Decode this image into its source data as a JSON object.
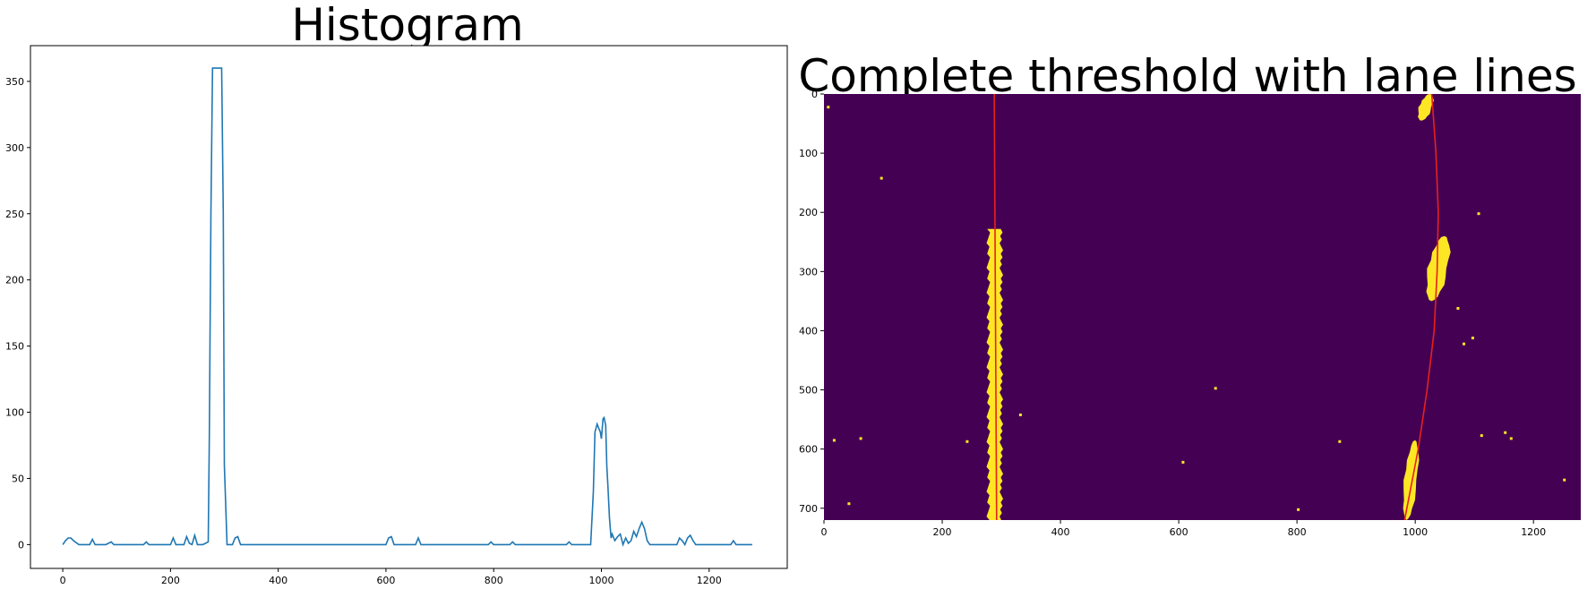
{
  "chart_data": [
    {
      "type": "line",
      "title": "Histogram",
      "xlabel": "",
      "ylabel": "",
      "xlim": [
        -60,
        1345
      ],
      "ylim": [
        -18,
        377
      ],
      "xticks": [
        0,
        200,
        400,
        600,
        800,
        1000,
        1200
      ],
      "yticks": [
        0,
        50,
        100,
        150,
        200,
        250,
        300,
        350
      ],
      "grid": false,
      "color": "#1f77b4",
      "series": [
        {
          "x": [
            0,
            5,
            10,
            15,
            20,
            30,
            50,
            55,
            60,
            80,
            90,
            95,
            100,
            130,
            150,
            155,
            160,
            200,
            205,
            210,
            225,
            230,
            235,
            240,
            245,
            250,
            260,
            270,
            272,
            275,
            278,
            282,
            288,
            295,
            298,
            300,
            305,
            315,
            320,
            325,
            330,
            340,
            600,
            605,
            610,
            615,
            620,
            655,
            660,
            665,
            790,
            795,
            800,
            830,
            835,
            840,
            935,
            940,
            945,
            980,
            985,
            988,
            992,
            995,
            998,
            1000,
            1003,
            1005,
            1008,
            1010,
            1012,
            1015,
            1018,
            1020,
            1025,
            1030,
            1035,
            1040,
            1045,
            1050,
            1055,
            1060,
            1065,
            1070,
            1075,
            1080,
            1085,
            1090,
            1140,
            1145,
            1150,
            1155,
            1160,
            1165,
            1170,
            1175,
            1240,
            1245,
            1250,
            1280
          ],
          "y": [
            0,
            3,
            5,
            5,
            3,
            0,
            0,
            4,
            0,
            0,
            2,
            0,
            0,
            0,
            0,
            2,
            0,
            0,
            5,
            0,
            0,
            6,
            1,
            0,
            7,
            0,
            0,
            2,
            80,
            250,
            360,
            360,
            360,
            360,
            250,
            60,
            0,
            0,
            5,
            6,
            0,
            0,
            0,
            5,
            6,
            0,
            0,
            0,
            5,
            0,
            0,
            2,
            0,
            0,
            2,
            0,
            0,
            2,
            0,
            0,
            40,
            85,
            91,
            88,
            85,
            80,
            95,
            96,
            90,
            60,
            45,
            20,
            5,
            8,
            3,
            6,
            8,
            0,
            5,
            1,
            3,
            10,
            6,
            12,
            17,
            12,
            3,
            0,
            0,
            5,
            3,
            0,
            5,
            7,
            3,
            0,
            0,
            3,
            0,
            0
          ]
        }
      ]
    },
    {
      "type": "heatmap",
      "title": "Complete threshold with lane lines",
      "xlabel": "",
      "ylabel": "",
      "xlim": [
        0,
        1280
      ],
      "ylim": [
        720,
        0
      ],
      "xticks": [
        0,
        200,
        400,
        600,
        800,
        1000,
        1200
      ],
      "yticks": [
        0,
        100,
        200,
        300,
        400,
        500,
        600,
        700
      ],
      "grid": false,
      "colors": {
        "background": "#440154",
        "pixels": "#fde725",
        "lane_fit": "#e8201e"
      },
      "left_lane_pixels": {
        "x_center": 289,
        "y_range": [
          228,
          720
        ],
        "half_width": 11
      },
      "left_lane_fit": {
        "x_top": 288,
        "x_bottom": 292
      },
      "right_lane_fit": {
        "y": [
          0,
          100,
          200,
          300,
          400,
          500,
          600,
          720
        ],
        "x": [
          1028,
          1035,
          1039,
          1037,
          1032,
          1020,
          1005,
          982
        ]
      },
      "right_lane_blobs": [
        {
          "x_range": [
            1000,
            1035
          ],
          "y_range": [
            0,
            45
          ]
        },
        {
          "x_range": [
            1012,
            1065
          ],
          "y_range": [
            240,
            350
          ]
        },
        {
          "x_range": [
            975,
            1010
          ],
          "y_range": [
            585,
            720
          ]
        }
      ]
    }
  ]
}
